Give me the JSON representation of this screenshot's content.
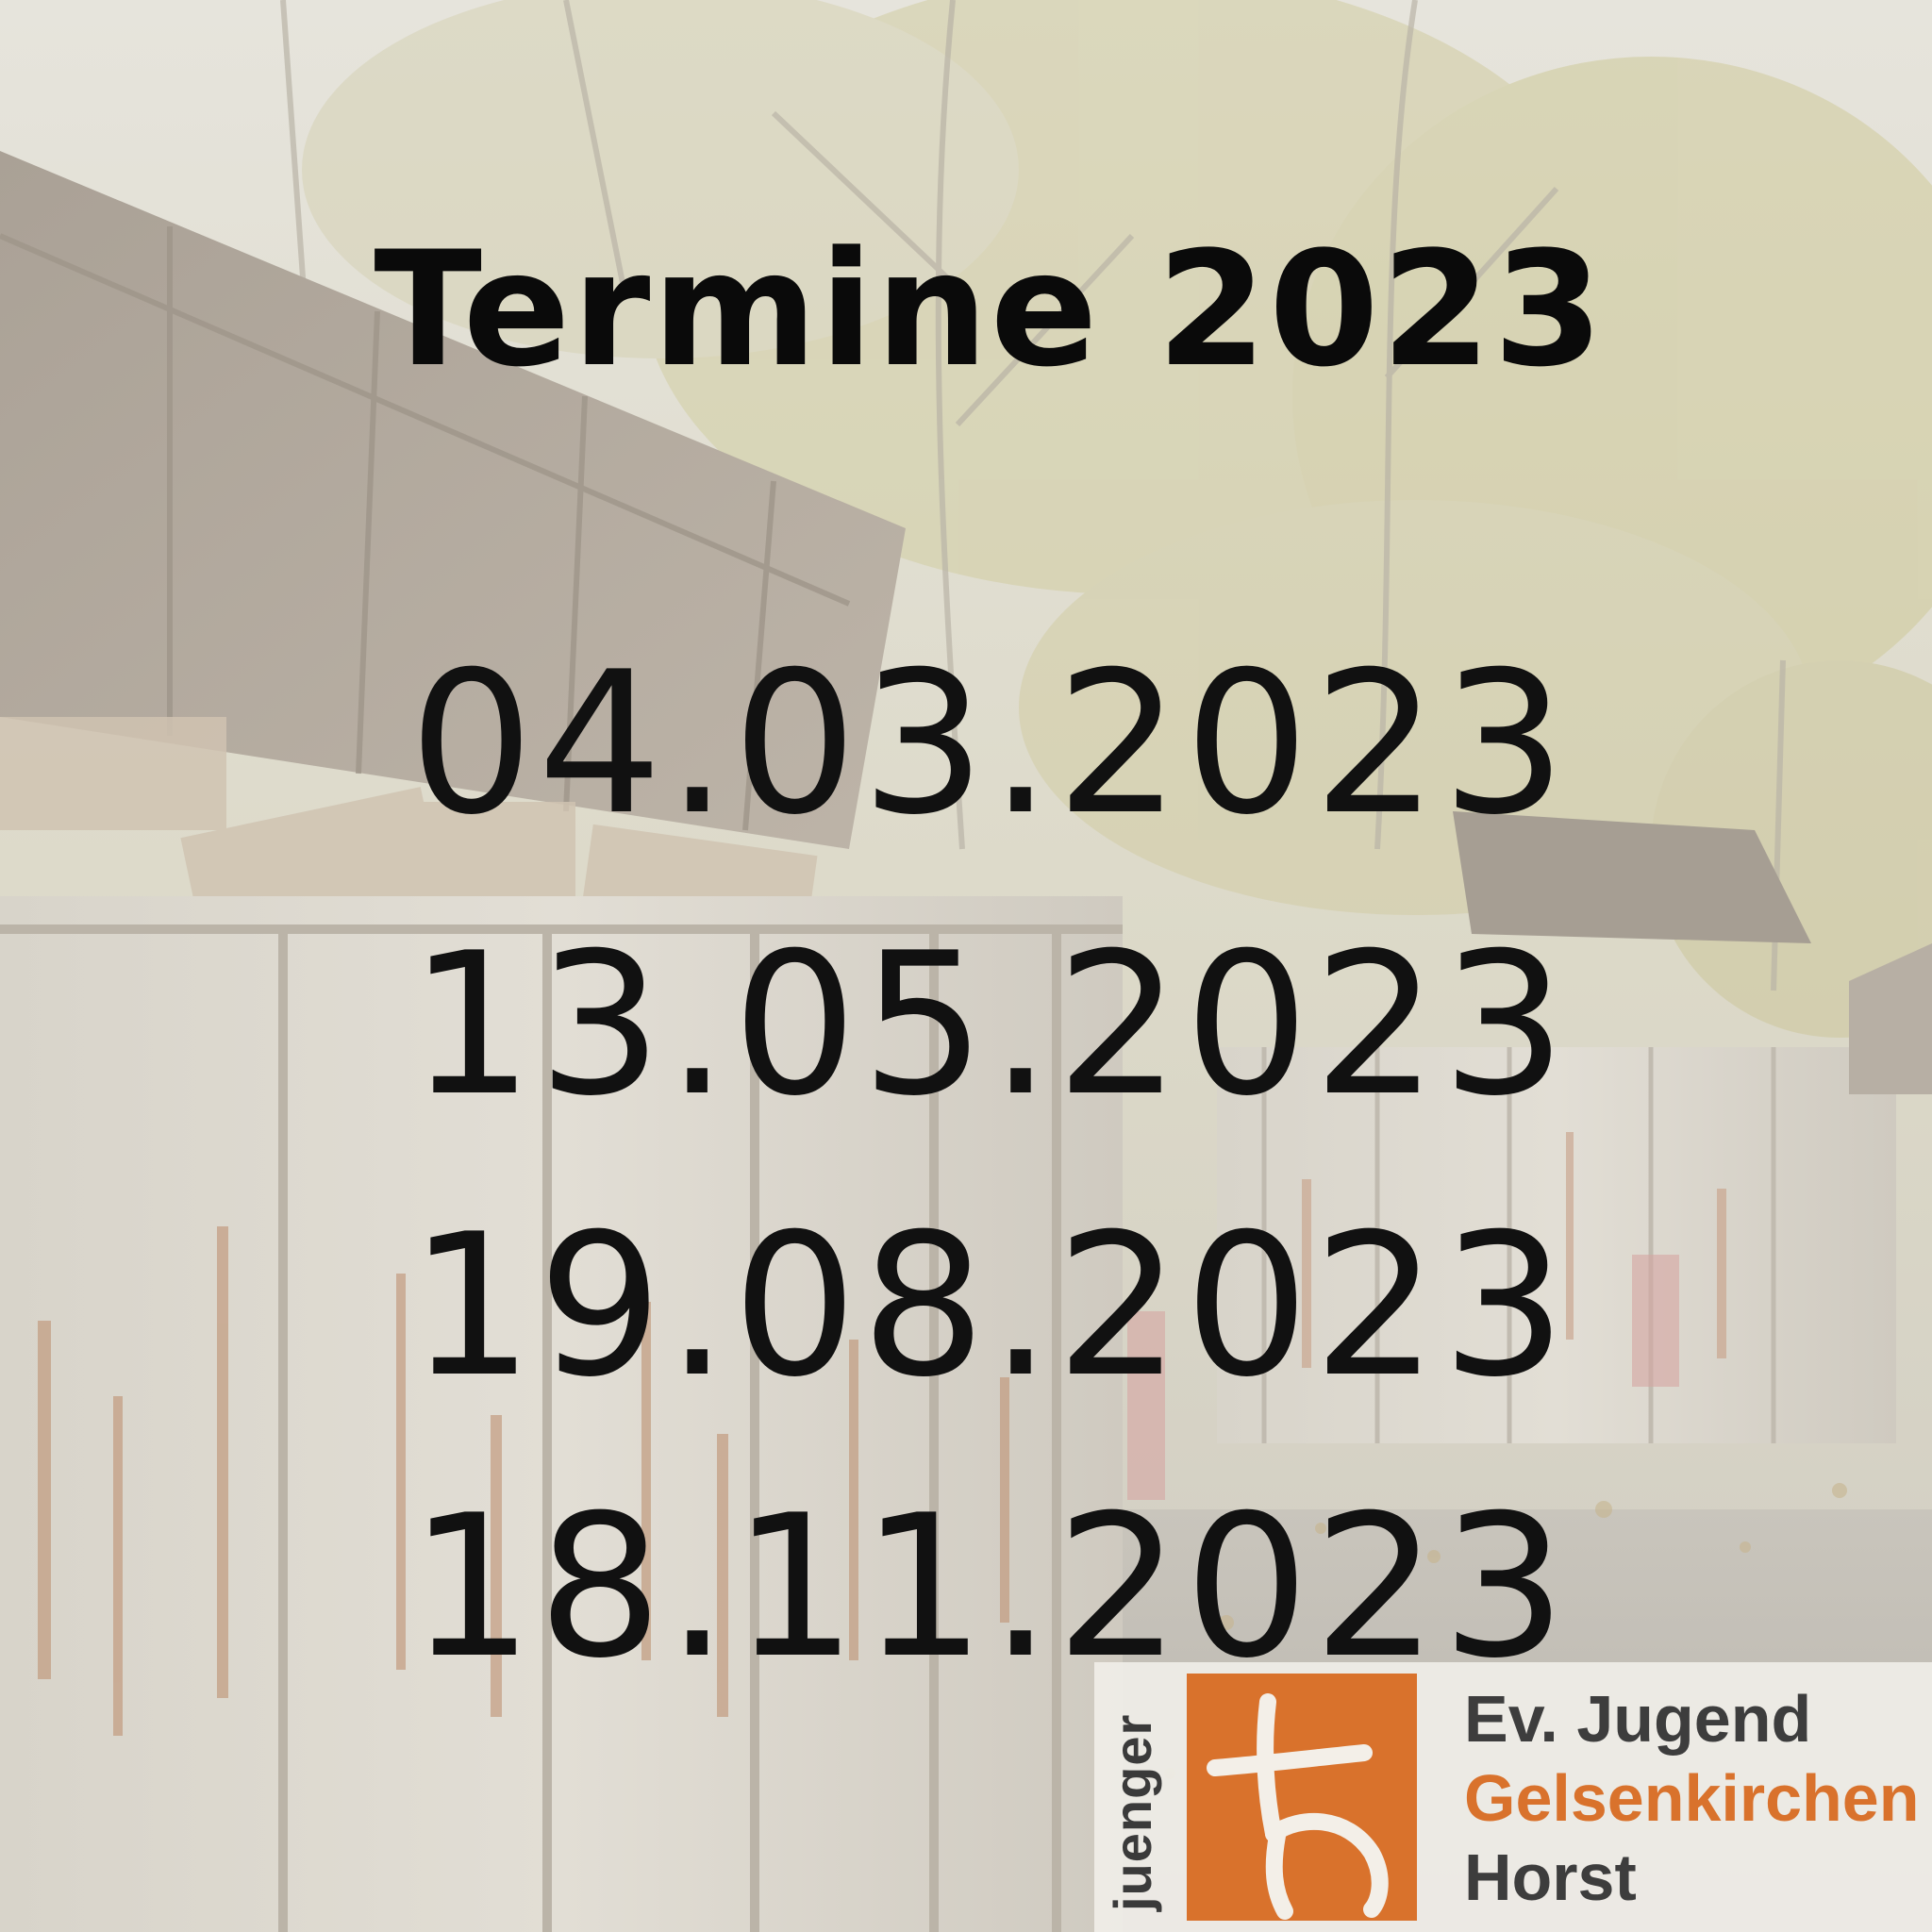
{
  "title": "Termine 2023",
  "dates": [
    "04.03.2023",
    "13.05.2023",
    "19.08.2023",
    "18.11.2023"
  ],
  "logo": {
    "vertical": "juenger",
    "line1": "Ev. Jugend",
    "line2": "Gelsenkirchen",
    "line3": "Horst",
    "accent_color": "#d9722c"
  }
}
